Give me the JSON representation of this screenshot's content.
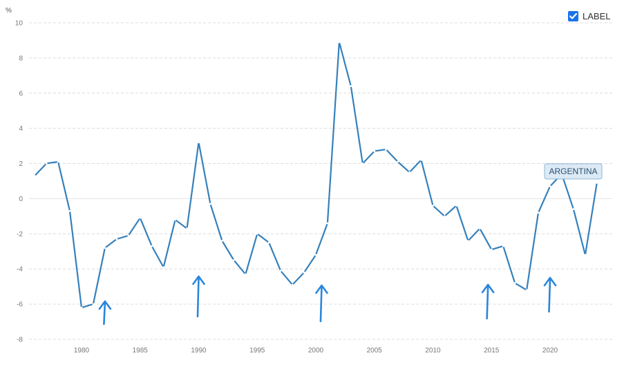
{
  "controls": {
    "label_checkbox": {
      "label": "LABEL",
      "checked": true
    }
  },
  "colors": {
    "line": "#3580bb",
    "grid": "#dcdcdc",
    "arrow": "#2a86db",
    "label_fill": "#dceaf6",
    "label_border": "#8eb4d6",
    "checkbox": "#1a73e8"
  },
  "chart_data": {
    "type": "line",
    "title": "",
    "xlabel": "",
    "ylabel": "%",
    "xlim": [
      1976,
      2024
    ],
    "ylim": [
      -8,
      10
    ],
    "yticks": [
      -8,
      -6,
      -4,
      -2,
      0,
      2,
      4,
      6,
      8,
      10
    ],
    "xticks": [
      1980,
      1985,
      1990,
      1995,
      2000,
      2005,
      2010,
      2015,
      2020
    ],
    "grid": true,
    "series": [
      {
        "name": "ARGENTINA",
        "x": [
          1976,
          1977,
          1978,
          1979,
          1980,
          1981,
          1982,
          1983,
          1984,
          1985,
          1986,
          1987,
          1988,
          1989,
          1990,
          1991,
          1992,
          1993,
          1994,
          1995,
          1996,
          1997,
          1998,
          1999,
          2000,
          2001,
          2002,
          2003,
          2004,
          2005,
          2006,
          2007,
          2008,
          2009,
          2010,
          2011,
          2012,
          2013,
          2014,
          2015,
          2016,
          2017,
          2018,
          2019,
          2020,
          2021,
          2022,
          2023,
          2024
        ],
        "values": [
          1.3,
          2.0,
          2.1,
          -0.7,
          -6.2,
          -6.0,
          -2.8,
          -2.3,
          -2.1,
          -1.1,
          -2.7,
          -3.9,
          -1.2,
          -1.7,
          3.2,
          -0.3,
          -2.4,
          -3.5,
          -4.3,
          -2.0,
          -2.5,
          -4.1,
          -4.9,
          -4.2,
          -3.2,
          -1.4,
          8.9,
          6.4,
          2.0,
          2.7,
          2.8,
          2.1,
          1.5,
          2.2,
          -0.4,
          -1.0,
          -0.4,
          -2.4,
          -1.7,
          -2.9,
          -2.7,
          -4.8,
          -5.2,
          -0.8,
          0.7,
          1.4,
          -0.6,
          -3.2,
          0.9
        ]
      }
    ],
    "annotations": {
      "arrows_at_years": [
        1982,
        1990,
        2000.5,
        2014.7,
        2020
      ]
    }
  }
}
